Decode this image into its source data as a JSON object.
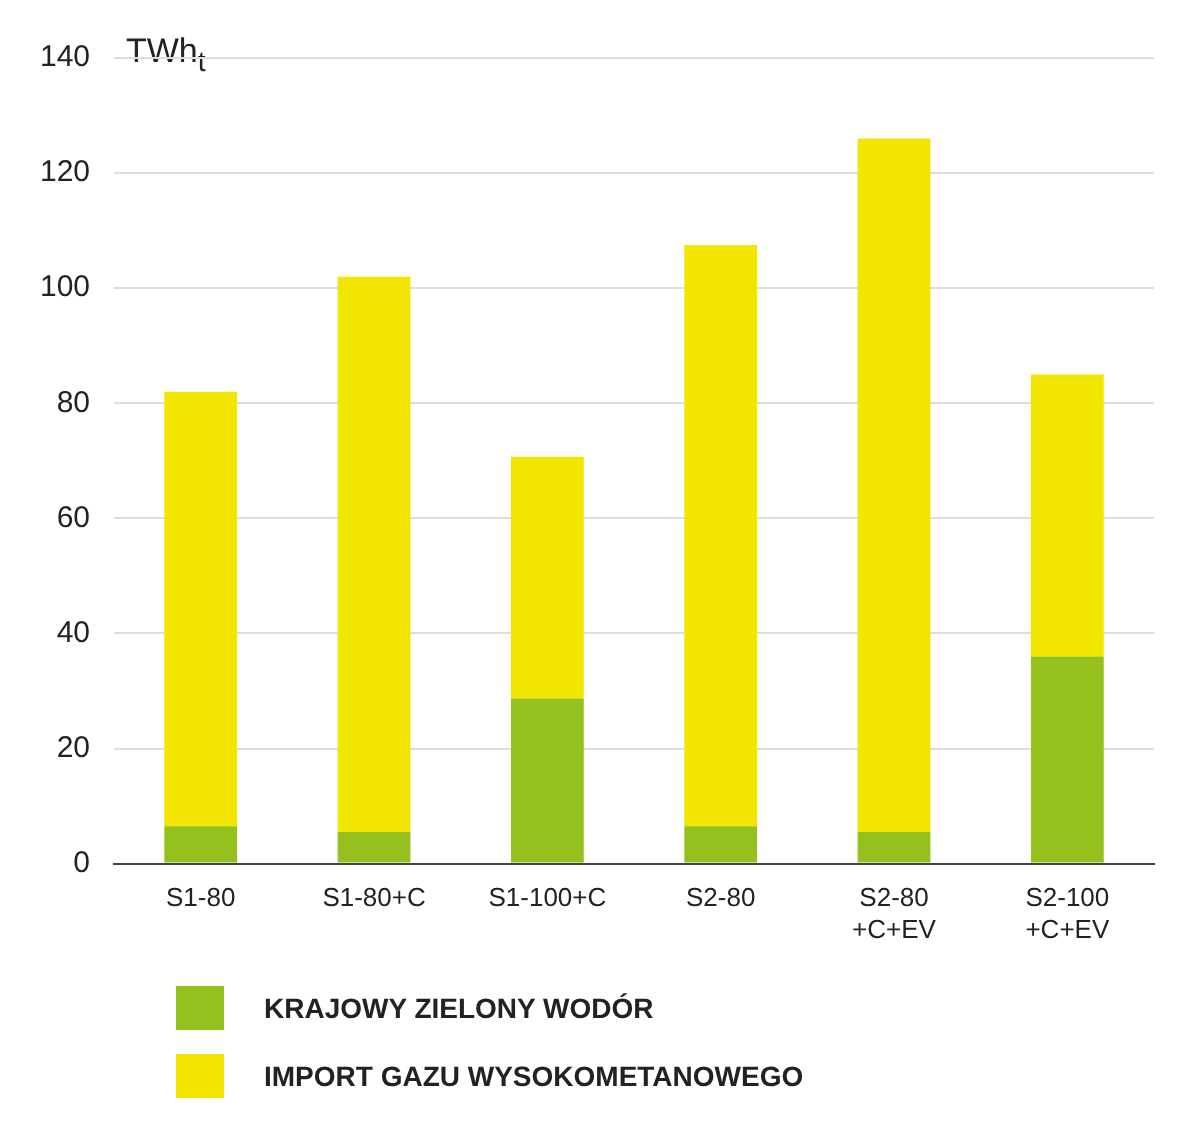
{
  "chart_data": {
    "type": "bar",
    "stacked": true,
    "ylabel": "TWh$_{t}$",
    "categories": [
      "S1-80",
      "S1-80+C",
      "S1-100+C",
      "S2-80",
      "S2-80\n+C+EV",
      "S2-100\n+C+EV"
    ],
    "series": [
      {
        "name": "KRAJOWY ZIELONY WODÓR",
        "color": "#95c11f",
        "values": [
          6.5,
          5.5,
          28.7,
          6.5,
          5.5,
          36
        ]
      },
      {
        "name": "IMPORT GAZU WYSOKOMETANOWEGO",
        "color": "#f2e500",
        "values": [
          75.5,
          96.5,
          42,
          101,
          120.5,
          49
        ]
      }
    ],
    "ylim": [
      0,
      140
    ],
    "yticks": [
      0,
      20,
      40,
      60,
      80,
      100,
      120,
      140
    ],
    "grid": "y",
    "legend": "bottom"
  }
}
